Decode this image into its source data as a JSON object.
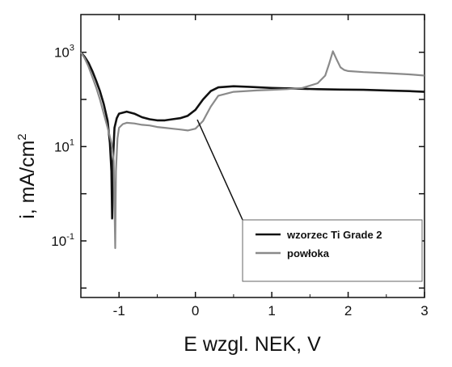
{
  "chart_data": {
    "type": "line",
    "xlabel": "E wzgl. NEK, V",
    "ylabel": "i, mA/cm",
    "ylabel_sup": "2",
    "xlim": [
      -1.5,
      3
    ],
    "ylim_log10": [
      -2.2,
      3.8
    ],
    "log_y": true,
    "x_ticks": [
      -1,
      0,
      1,
      2,
      3
    ],
    "x_tick_labels": [
      "-1",
      "0",
      "1",
      "2",
      "3"
    ],
    "y_ticks_log10": [
      3,
      1,
      -1
    ],
    "y_tick_base": "10",
    "y_tick_exponents": [
      "3",
      "1",
      "-1"
    ],
    "legend_placement": "bottom-right",
    "grid": false,
    "series": [
      {
        "name": "wzorzec Ti Grade 2",
        "color": "#111111",
        "x": [
          -1.5,
          -1.45,
          -1.4,
          -1.35,
          -1.3,
          -1.25,
          -1.2,
          -1.15,
          -1.12,
          -1.1,
          -1.09,
          -1.08,
          -1.06,
          -1.03,
          -1.0,
          -0.9,
          -0.8,
          -0.7,
          -0.6,
          -0.5,
          -0.4,
          -0.3,
          -0.2,
          -0.1,
          0.0,
          0.1,
          0.2,
          0.3,
          0.5,
          0.7,
          1.0,
          1.3,
          1.6,
          1.9,
          2.2,
          2.5,
          2.8,
          3.0
        ],
        "y": [
          1000,
          800,
          600,
          400,
          250,
          150,
          80,
          35,
          12,
          3,
          0.3,
          5,
          25,
          40,
          50,
          55,
          50,
          42,
          38,
          36,
          36,
          38,
          40,
          45,
          60,
          100,
          150,
          180,
          190,
          185,
          175,
          170,
          165,
          162,
          160,
          155,
          150,
          145
        ]
      },
      {
        "name": "powłoka",
        "color": "#8a8a8a",
        "x": [
          -1.5,
          -1.45,
          -1.4,
          -1.35,
          -1.3,
          -1.25,
          -1.2,
          -1.15,
          -1.1,
          -1.07,
          -1.05,
          -1.04,
          -1.02,
          -1.0,
          -0.95,
          -0.9,
          -0.8,
          -0.7,
          -0.6,
          -0.5,
          -0.4,
          -0.3,
          -0.2,
          -0.1,
          0.0,
          0.1,
          0.2,
          0.3,
          0.5,
          0.8,
          1.0,
          1.2,
          1.4,
          1.6,
          1.7,
          1.75,
          1.8,
          1.85,
          1.9,
          1.95,
          2.0,
          2.2,
          2.5,
          2.8,
          3.0
        ],
        "y": [
          1000,
          750,
          500,
          300,
          180,
          100,
          50,
          25,
          12,
          5,
          0.07,
          3,
          15,
          25,
          30,
          32,
          31,
          29,
          28,
          26,
          25,
          24,
          23,
          22,
          24,
          35,
          70,
          120,
          145,
          155,
          160,
          165,
          175,
          220,
          320,
          560,
          1050,
          700,
          480,
          420,
          400,
          380,
          360,
          340,
          320
        ]
      }
    ]
  }
}
